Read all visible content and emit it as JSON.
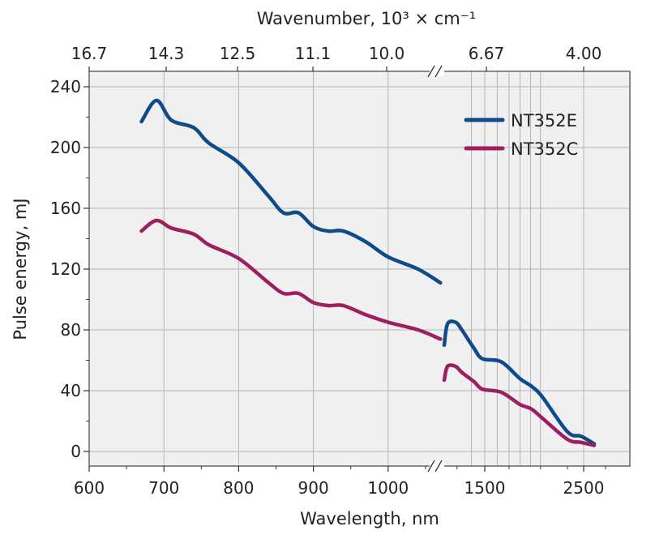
{
  "chart_data": {
    "type": "line",
    "xlabel": "Wavelength, nm",
    "ylabel": "Pulse energy, mJ",
    "x2label": "Wavenumber, 10³ × cm⁻¹",
    "ylim": [
      0,
      240
    ],
    "y_ticks": [
      "0",
      "40",
      "80",
      "120",
      "160",
      "200",
      "240"
    ],
    "x_ticks_left": [
      "600",
      "700",
      "800",
      "900",
      "1000"
    ],
    "x_ticks_right": [
      "1500",
      "2500"
    ],
    "x2_ticks_left": [
      "16.7",
      "14.3",
      "12.5",
      "11.1",
      "10.0"
    ],
    "x2_ticks_right": [
      "6.67",
      "4.00"
    ],
    "axis_break": "between 1100 nm and 1300 nm",
    "grid": true,
    "legend_position": "top-right",
    "series": [
      {
        "name": "NT352E",
        "color": "#0f4a8a",
        "segment_left": {
          "x": [
            670,
            690,
            710,
            740,
            760,
            800,
            840,
            860,
            880,
            900,
            920,
            940,
            970,
            1000,
            1040,
            1070
          ],
          "y": [
            217,
            231,
            218,
            213,
            203,
            190,
            168,
            157,
            157,
            148,
            145,
            145,
            138,
            128,
            120,
            111
          ]
        },
        "segment_right": {
          "x": [
            1310,
            1330,
            1380,
            1420,
            1500,
            1560,
            1700,
            1850,
            1950,
            2050,
            2300,
            2450,
            2600
          ],
          "y": [
            70,
            84,
            85,
            80,
            68,
            61,
            59,
            48,
            43,
            36,
            13,
            10,
            5
          ]
        }
      },
      {
        "name": "NT352C",
        "color": "#9e1f5f",
        "segment_left": {
          "x": [
            670,
            690,
            710,
            740,
            760,
            800,
            840,
            860,
            880,
            900,
            920,
            940,
            970,
            1000,
            1040,
            1070
          ],
          "y": [
            145,
            152,
            147,
            143,
            136,
            127,
            111,
            104,
            104,
            98,
            96,
            96,
            90,
            85,
            80,
            74
          ]
        },
        "segment_right": {
          "x": [
            1310,
            1330,
            1380,
            1420,
            1500,
            1560,
            1700,
            1850,
            1950,
            2050,
            2300,
            2450,
            2600
          ],
          "y": [
            47,
            56,
            56,
            52,
            46,
            41,
            39,
            31,
            28,
            22,
            8,
            6,
            4
          ]
        }
      }
    ]
  }
}
